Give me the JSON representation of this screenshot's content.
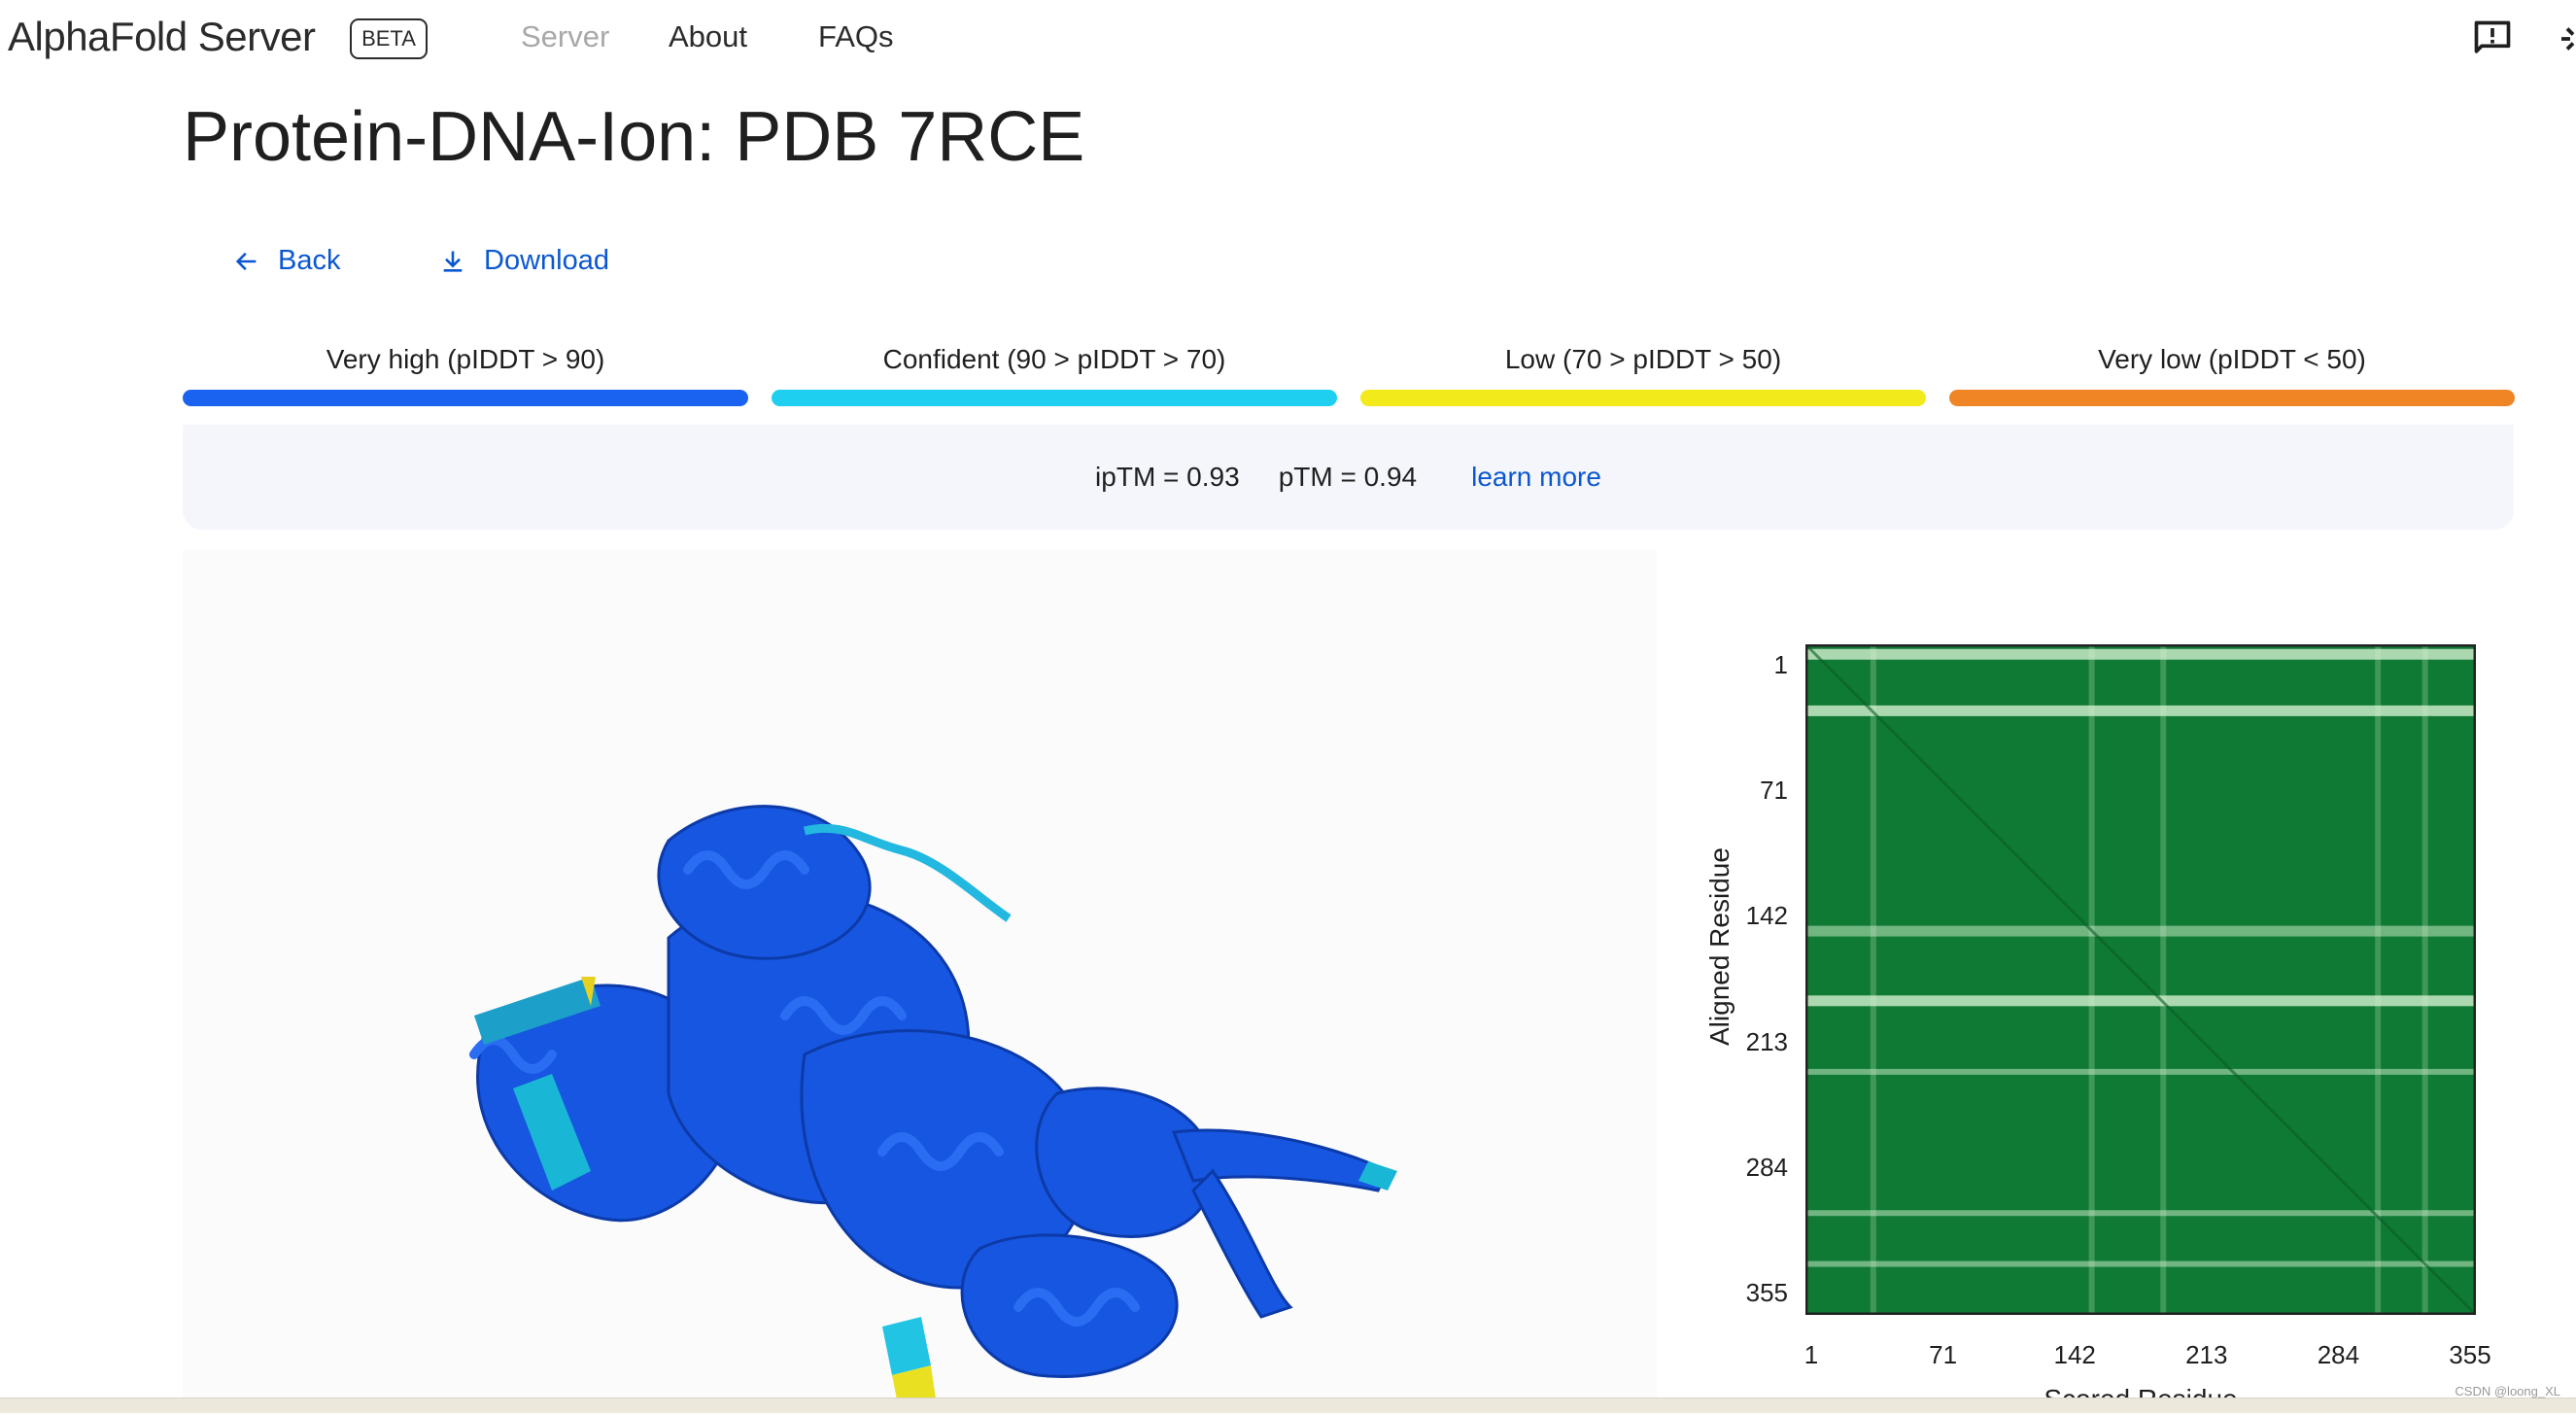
{
  "header": {
    "logo": "AlphaFold Server",
    "badge": "BETA",
    "nav": [
      {
        "label": "Server",
        "active": false
      },
      {
        "label": "About"
      },
      {
        "label": "FAQs"
      }
    ],
    "icons": [
      "feedback-icon",
      "settings-icon"
    ]
  },
  "page": {
    "title": "Protein-DNA-Ion: PDB 7RCE",
    "back_label": "Back",
    "download_label": "Download"
  },
  "legend": [
    {
      "label": "Very high (pIDDT > 90)",
      "color": "#1a62f0"
    },
    {
      "label": "Confident (90 > pIDDT > 70)",
      "color": "#1fcff0"
    },
    {
      "label": "Low (70 > pIDDT > 50)",
      "color": "#f2ea1b"
    },
    {
      "label": "Very low (pIDDT < 50)",
      "color": "#f08526"
    }
  ],
  "scores": {
    "iptm": "ipTM = 0.93",
    "ptm": "pTM = 0.94",
    "learn_more": "learn more"
  },
  "chart_data": {
    "type": "heatmap",
    "ylabel": "Aligned Residue",
    "xlabel": "Scored Residue",
    "xticks": [
      "1",
      "71",
      "142",
      "213",
      "284",
      "355"
    ],
    "yticks": [
      "1",
      "71",
      "142",
      "213",
      "284",
      "355"
    ],
    "range": [
      1,
      355
    ],
    "colormap": {
      "low": "#0e7a33",
      "high": "#d4f0d0"
    },
    "high_error_rows": [
      5,
      35,
      152,
      189,
      228,
      303,
      330
    ],
    "high_error_cols": [
      36,
      152,
      190,
      304,
      329
    ]
  },
  "watermark": "CSDN @loong_XL"
}
